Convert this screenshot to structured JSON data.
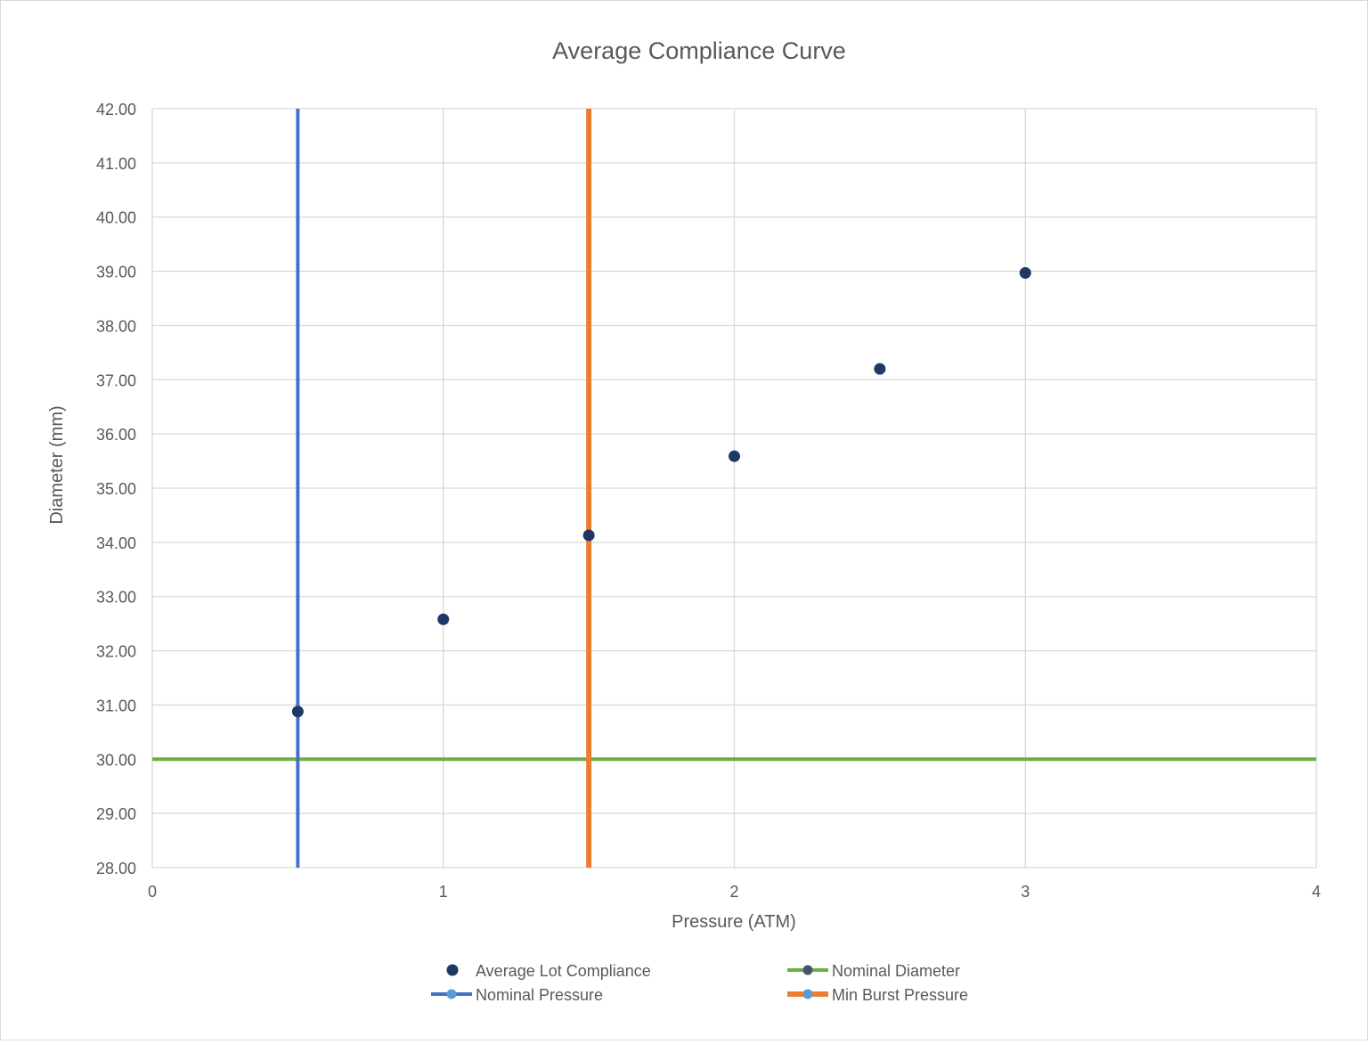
{
  "chart_data": {
    "type": "scatter",
    "title": "Average Compliance Curve",
    "xlabel": "Pressure (ATM)",
    "ylabel": "Diameter (mm)",
    "xlim": [
      0,
      4
    ],
    "ylim": [
      28,
      42
    ],
    "x_ticks": [
      "0",
      "1",
      "2",
      "3",
      "4"
    ],
    "y_ticks": [
      "28.00",
      "29.00",
      "30.00",
      "31.00",
      "32.00",
      "33.00",
      "34.00",
      "35.00",
      "36.00",
      "37.00",
      "38.00",
      "39.00",
      "40.00",
      "41.00",
      "42.00"
    ],
    "grid": true,
    "legend_position": "bottom",
    "series": [
      {
        "name": "Average Lot Compliance",
        "kind": "markers",
        "color": "#203864",
        "points": [
          [
            0.5,
            30.88
          ],
          [
            1.0,
            32.58
          ],
          [
            1.5,
            34.13
          ],
          [
            2.0,
            35.59
          ],
          [
            2.5,
            37.2
          ],
          [
            3.0,
            38.97
          ]
        ]
      },
      {
        "name": "Nominal Diameter",
        "kind": "line",
        "color": "#70ad47",
        "points": [
          [
            0,
            30.0
          ],
          [
            4,
            30.0
          ]
        ]
      },
      {
        "name": "Nominal Pressure",
        "kind": "line",
        "color": "#4472c4",
        "points": [
          [
            0.5,
            28.0
          ],
          [
            0.5,
            42.0
          ]
        ]
      },
      {
        "name": "Min Burst Pressure",
        "kind": "line",
        "color": "#ed7d31",
        "points": [
          [
            1.5,
            28.0
          ],
          [
            1.5,
            42.0
          ]
        ]
      }
    ]
  }
}
